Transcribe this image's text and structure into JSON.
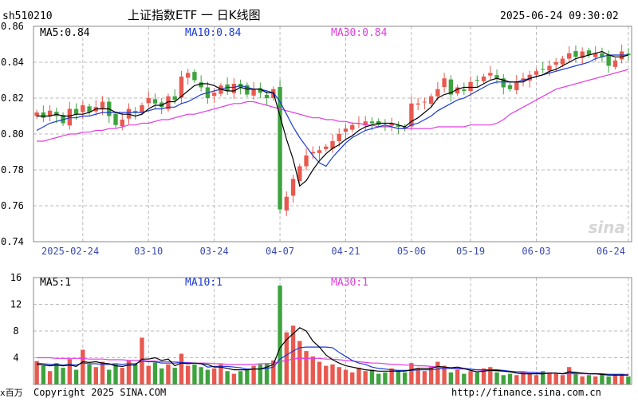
{
  "header": {
    "symbol": "sh510210",
    "title": "上证指数ETF 一 日K线图",
    "datetime": "2025-06-24 09:30:02"
  },
  "footer": {
    "copyright": "Copyright 2025 SINA.COM",
    "url": "http://finance.sina.com.cn"
  },
  "watermark": "sina",
  "colors": {
    "up": "#e8594f",
    "down": "#3ea33e",
    "ma5": "#000000",
    "ma10": "#1a39d6",
    "ma30": "#e23ce2",
    "grid": "#bbbbbb"
  },
  "chart_data": [
    {
      "type": "candlestick",
      "legend": [
        {
          "label": "MA5:0.84",
          "color": "#000000"
        },
        {
          "label": "MA10:0.84",
          "color": "#1a39d6"
        },
        {
          "label": "MA30:0.84",
          "color": "#e23ce2"
        }
      ],
      "ylim": [
        0.74,
        0.86
      ],
      "y_ticks": [
        "0.86",
        "0.84",
        "0.82",
        "0.80",
        "0.78",
        "0.76",
        "0.74"
      ],
      "x_ticks": [
        {
          "label": "2025-02-24",
          "index": 7
        },
        {
          "label": "03-10",
          "index": 17
        },
        {
          "label": "03-24",
          "index": 27
        },
        {
          "label": "04-07",
          "index": 37
        },
        {
          "label": "04-21",
          "index": 47
        },
        {
          "label": "05-06",
          "index": 57
        },
        {
          "label": "05-19",
          "index": 66
        },
        {
          "label": "06-03",
          "index": 76
        },
        {
          "label": "06-24",
          "index": 90
        }
      ],
      "close": [
        0.812,
        0.809,
        0.813,
        0.81,
        0.806,
        0.814,
        0.811,
        0.816,
        0.812,
        0.815,
        0.818,
        0.81,
        0.805,
        0.808,
        0.814,
        0.812,
        0.816,
        0.82,
        0.817,
        0.815,
        0.821,
        0.819,
        0.832,
        0.834,
        0.83,
        0.826,
        0.82,
        0.823,
        0.827,
        0.824,
        0.828,
        0.826,
        0.822,
        0.825,
        0.823,
        0.82,
        0.825,
        0.758,
        0.765,
        0.775,
        0.782,
        0.788,
        0.79,
        0.791,
        0.793,
        0.796,
        0.8,
        0.803,
        0.805,
        0.806,
        0.807,
        0.806,
        0.805,
        0.804,
        0.806,
        0.804,
        0.803,
        0.817,
        0.817,
        0.818,
        0.821,
        0.825,
        0.831,
        0.822,
        0.826,
        0.824,
        0.829,
        0.83,
        0.832,
        0.834,
        0.831,
        0.826,
        0.825,
        0.829,
        0.831,
        0.833,
        0.835,
        0.836,
        0.838,
        0.84,
        0.842,
        0.845,
        0.843,
        0.846,
        0.844,
        0.845,
        0.843,
        0.838,
        0.841,
        0.846,
        0.844
      ],
      "ma5": [
        0.81,
        0.81,
        0.81,
        0.811,
        0.81,
        0.81,
        0.811,
        0.811,
        0.812,
        0.814,
        0.814,
        0.814,
        0.812,
        0.811,
        0.811,
        0.81,
        0.811,
        0.814,
        0.816,
        0.816,
        0.818,
        0.818,
        0.821,
        0.824,
        0.827,
        0.828,
        0.828,
        0.827,
        0.825,
        0.824,
        0.824,
        0.826,
        0.825,
        0.825,
        0.825,
        0.823,
        0.823,
        0.81,
        0.797,
        0.786,
        0.771,
        0.774,
        0.78,
        0.785,
        0.789,
        0.792,
        0.794,
        0.797,
        0.799,
        0.802,
        0.804,
        0.805,
        0.806,
        0.806,
        0.806,
        0.805,
        0.804,
        0.807,
        0.809,
        0.812,
        0.815,
        0.82,
        0.822,
        0.823,
        0.825,
        0.826,
        0.826,
        0.826,
        0.828,
        0.83,
        0.831,
        0.83,
        0.829,
        0.829,
        0.829,
        0.831,
        0.832,
        0.833,
        0.835,
        0.836,
        0.838,
        0.84,
        0.842,
        0.843,
        0.844,
        0.845,
        0.846,
        0.844,
        0.843,
        0.843,
        0.844
      ],
      "ma10": [
        0.802,
        0.804,
        0.806,
        0.807,
        0.808,
        0.809,
        0.809,
        0.81,
        0.81,
        0.811,
        0.812,
        0.812,
        0.812,
        0.812,
        0.812,
        0.812,
        0.812,
        0.813,
        0.814,
        0.814,
        0.815,
        0.815,
        0.817,
        0.818,
        0.82,
        0.822,
        0.823,
        0.824,
        0.825,
        0.826,
        0.826,
        0.827,
        0.826,
        0.825,
        0.825,
        0.824,
        0.823,
        0.818,
        0.811,
        0.804,
        0.798,
        0.793,
        0.788,
        0.784,
        0.782,
        0.787,
        0.791,
        0.795,
        0.798,
        0.8,
        0.802,
        0.803,
        0.804,
        0.805,
        0.804,
        0.803,
        0.803,
        0.805,
        0.806,
        0.808,
        0.81,
        0.813,
        0.815,
        0.817,
        0.819,
        0.82,
        0.822,
        0.824,
        0.826,
        0.828,
        0.829,
        0.829,
        0.829,
        0.829,
        0.83,
        0.831,
        0.832,
        0.833,
        0.834,
        0.835,
        0.836,
        0.837,
        0.838,
        0.839,
        0.84,
        0.842,
        0.843,
        0.844,
        0.844,
        0.844,
        0.844
      ],
      "ma30": [
        0.796,
        0.796,
        0.797,
        0.798,
        0.799,
        0.8,
        0.8,
        0.801,
        0.801,
        0.802,
        0.802,
        0.803,
        0.803,
        0.804,
        0.805,
        0.805,
        0.806,
        0.806,
        0.807,
        0.808,
        0.808,
        0.809,
        0.81,
        0.811,
        0.811,
        0.812,
        0.813,
        0.814,
        0.815,
        0.816,
        0.817,
        0.817,
        0.818,
        0.818,
        0.817,
        0.816,
        0.815,
        0.814,
        0.813,
        0.812,
        0.811,
        0.81,
        0.809,
        0.809,
        0.808,
        0.808,
        0.807,
        0.807,
        0.806,
        0.806,
        0.805,
        0.805,
        0.804,
        0.804,
        0.804,
        0.803,
        0.803,
        0.803,
        0.803,
        0.803,
        0.803,
        0.804,
        0.804,
        0.804,
        0.804,
        0.804,
        0.805,
        0.805,
        0.805,
        0.805,
        0.806,
        0.808,
        0.811,
        0.813,
        0.815,
        0.817,
        0.819,
        0.821,
        0.823,
        0.825,
        0.826,
        0.827,
        0.828,
        0.829,
        0.83,
        0.831,
        0.832,
        0.833,
        0.834,
        0.835,
        0.836
      ]
    },
    {
      "type": "bar",
      "legend": [
        {
          "label": "MA5:1",
          "color": "#000000"
        },
        {
          "label": "MA10:1",
          "color": "#1a39d6"
        },
        {
          "label": "MA30:1",
          "color": "#e23ce2"
        }
      ],
      "unit_label": "x百万",
      "ylim": [
        0,
        16
      ],
      "y_ticks": [
        "16",
        "12",
        "8",
        "4"
      ],
      "volume": [
        3.5,
        2.8,
        2.0,
        3.2,
        2.5,
        3.8,
        2.2,
        5.2,
        3.0,
        2.6,
        3.4,
        2.2,
        3.0,
        2.5,
        3.6,
        3.0,
        7.0,
        2.8,
        3.3,
        2.4,
        3.0,
        2.5,
        4.6,
        2.8,
        3.0,
        2.6,
        2.2,
        2.4,
        3.0,
        2.0,
        1.6,
        2.0,
        2.2,
        2.8,
        3.0,
        3.2,
        3.6,
        14.8,
        7.8,
        8.8,
        6.5,
        5.0,
        4.2,
        3.4,
        2.8,
        3.0,
        2.6,
        2.2,
        1.8,
        2.5,
        2.0,
        2.2,
        1.6,
        1.8,
        2.4,
        2.0,
        1.8,
        3.2,
        2.4,
        2.0,
        2.6,
        3.4,
        2.8,
        1.8,
        2.2,
        1.6,
        2.0,
        1.8,
        2.4,
        2.6,
        1.8,
        1.4,
        1.6,
        1.4,
        1.8,
        1.6,
        1.4,
        2.0,
        1.8,
        1.6,
        1.4,
        2.6,
        1.6,
        1.2,
        1.4,
        1.2,
        1.6,
        1.2,
        1.4,
        1.6,
        1.2
      ],
      "vol_ma5": [
        3.0,
        2.9,
        2.8,
        2.9,
        2.8,
        2.9,
        2.7,
        3.4,
        3.3,
        3.4,
        3.2,
        3.1,
        2.8,
        2.7,
        2.9,
        2.9,
        3.8,
        3.8,
        4.0,
        3.6,
        3.8,
        2.8,
        3.2,
        3.1,
        3.2,
        3.1,
        3.0,
        2.6,
        2.6,
        2.4,
        2.2,
        2.2,
        2.2,
        2.3,
        2.3,
        2.6,
        3.0,
        5.5,
        6.7,
        7.6,
        8.5,
        8.0,
        6.5,
        5.6,
        4.4,
        3.7,
        3.2,
        2.8,
        2.6,
        2.4,
        2.2,
        2.1,
        2.0,
        2.0,
        2.0,
        2.0,
        2.0,
        2.2,
        2.4,
        2.4,
        2.4,
        2.7,
        2.6,
        2.5,
        2.6,
        2.4,
        2.1,
        1.9,
        2.0,
        2.1,
        2.1,
        2.0,
        1.9,
        1.7,
        1.6,
        1.6,
        1.6,
        1.6,
        1.7,
        1.7,
        1.6,
        1.9,
        1.8,
        1.7,
        1.6,
        1.6,
        1.5,
        1.4,
        1.4,
        1.4,
        1.4
      ],
      "vol_ma10": [
        3.2,
        3.1,
        3.0,
        3.0,
        2.9,
        3.0,
        2.9,
        3.2,
        3.1,
        3.1,
        3.0,
        3.0,
        3.1,
        3.0,
        3.1,
        3.1,
        3.5,
        3.4,
        3.4,
        3.2,
        3.2,
        3.2,
        3.3,
        3.2,
        3.2,
        3.1,
        2.6,
        2.7,
        2.7,
        2.7,
        2.6,
        2.5,
        2.3,
        2.3,
        2.3,
        2.4,
        2.6,
        3.8,
        4.4,
        5.0,
        5.5,
        5.6,
        5.6,
        5.6,
        5.6,
        5.5,
        4.8,
        4.2,
        3.6,
        3.2,
        3.0,
        2.6,
        2.4,
        2.3,
        2.2,
        2.1,
        2.1,
        2.1,
        2.2,
        2.2,
        2.2,
        2.3,
        2.4,
        2.4,
        2.4,
        2.4,
        2.3,
        2.2,
        2.2,
        2.2,
        2.2,
        2.1,
        2.0,
        1.9,
        1.9,
        1.8,
        1.8,
        1.7,
        1.7,
        1.7,
        1.6,
        1.7,
        1.7,
        1.7,
        1.6,
        1.6,
        1.6,
        1.5,
        1.5,
        1.5,
        1.4
      ],
      "vol_ma30": [
        4.0,
        4.0,
        4.0,
        3.9,
        3.9,
        3.9,
        3.9,
        3.9,
        3.8,
        3.8,
        3.8,
        3.7,
        3.7,
        3.7,
        3.6,
        3.6,
        3.6,
        3.5,
        3.5,
        3.4,
        3.4,
        3.4,
        3.3,
        3.3,
        3.2,
        3.2,
        3.2,
        3.1,
        3.1,
        3.0,
        3.0,
        3.0,
        3.0,
        3.0,
        3.1,
        3.1,
        3.2,
        3.4,
        3.6,
        3.8,
        3.9,
        3.9,
        3.9,
        3.9,
        3.8,
        3.8,
        3.7,
        3.6,
        3.5,
        3.4,
        3.3,
        3.2,
        3.2,
        3.1,
        3.0,
        3.0,
        2.9,
        2.9,
        2.8,
        2.8,
        2.7,
        2.6,
        2.5,
        2.4,
        2.3,
        2.3,
        2.2,
        2.2,
        2.1,
        2.1,
        2.0,
        2.0,
        1.9,
        1.9,
        1.8,
        1.8,
        1.8,
        1.7,
        1.7,
        1.7,
        1.6,
        1.6,
        1.6,
        1.6,
        1.6,
        1.6,
        1.5,
        1.5,
        1.5,
        1.5,
        1.5
      ]
    }
  ]
}
